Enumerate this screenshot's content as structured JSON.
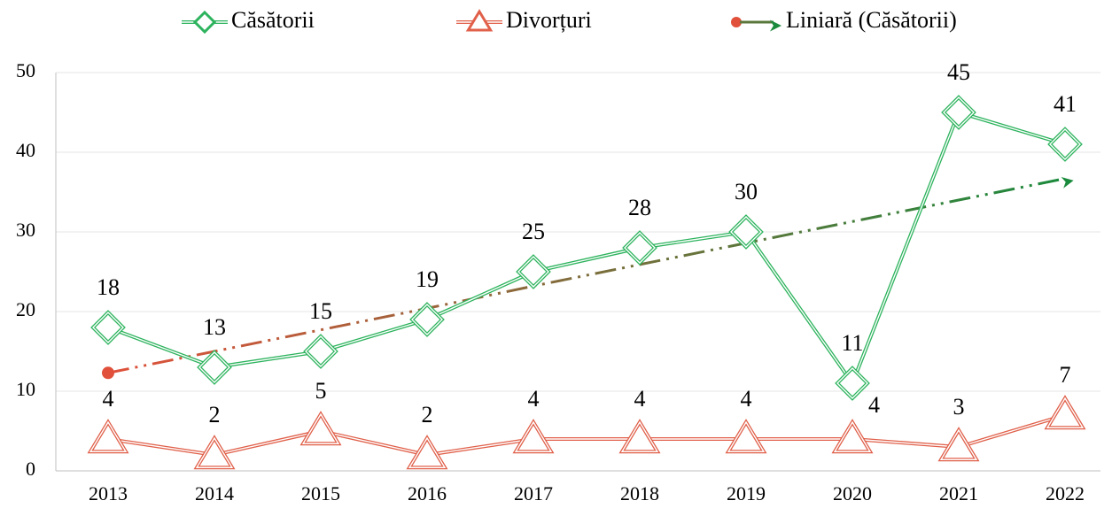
{
  "chart_data": {
    "type": "line",
    "categories": [
      "2013",
      "2014",
      "2015",
      "2016",
      "2017",
      "2018",
      "2019",
      "2020",
      "2021",
      "2022"
    ],
    "series": [
      {
        "name": "Căsătorii",
        "color": "#2db35d",
        "marker": "diamond",
        "values": [
          18,
          13,
          15,
          19,
          25,
          28,
          30,
          11,
          45,
          41
        ]
      },
      {
        "name": "Divorțuri",
        "color": "#e0604a",
        "marker": "triangle",
        "values": [
          4,
          2,
          5,
          2,
          4,
          4,
          4,
          4,
          3,
          7
        ]
      },
      {
        "name": "Liniară (Căsătorii)",
        "color": "#1a8a3c",
        "start_color": "#e0503a",
        "trendline": true,
        "values": [
          12.3,
          15.0,
          17.7,
          20.4,
          23.2,
          25.9,
          28.6,
          31.3,
          34.0,
          36.7
        ]
      }
    ],
    "ylim": [
      0,
      50
    ],
    "yticks": [
      0,
      10,
      20,
      30,
      40,
      50
    ],
    "grid": true,
    "legend": "top"
  }
}
